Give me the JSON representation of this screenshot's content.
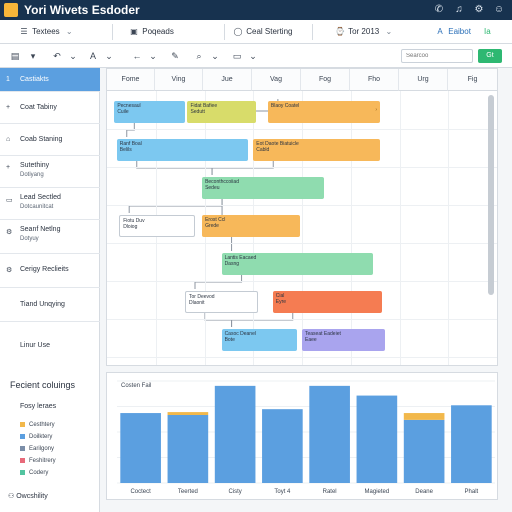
{
  "window": {
    "title": "Yori Wivets Esdoder"
  },
  "titlebar_icons": [
    "phone-icon",
    "bell-icon",
    "settings-icon",
    "user-icon"
  ],
  "tabs": [
    {
      "label": "Textees",
      "glyph": "☰",
      "chevron": true
    },
    {
      "label": "Poqeads",
      "glyph": "▣",
      "chevron": false
    },
    {
      "label": "Ceal Sterting",
      "glyph": "◯",
      "chevron": false
    },
    {
      "label": "Tor 2013",
      "glyph": "⌚",
      "chevron": true
    },
    {
      "label": "Eaibot",
      "glyph": "A",
      "chevron": false
    },
    {
      "label": "Ia",
      "glyph": "",
      "chevron": false
    }
  ],
  "toolbar": {
    "search_placeholder": "Searcoo",
    "go_label": "Gt"
  },
  "sidebar": {
    "items": [
      {
        "title": "Castiakts",
        "sub": "",
        "glyph": "1",
        "active": true
      },
      {
        "title": "Coat Tabiny",
        "sub": "",
        "glyph": "+",
        "active": false
      },
      {
        "title": "Coab Staning",
        "sub": "",
        "glyph": "⌂",
        "active": false
      },
      {
        "title": "Sutethiny",
        "sub": "Dotiyang",
        "glyph": "+",
        "active": false
      },
      {
        "title": "Lead Sectled",
        "sub": "Dotcaunitcat",
        "glyph": "▭",
        "active": false
      },
      {
        "title": "Seanf Netlng",
        "sub": "Dotyuy",
        "glyph": "⚙",
        "active": false
      },
      {
        "title": "Cerigy Reclieits",
        "sub": "",
        "glyph": "⚙",
        "active": false
      },
      {
        "title": "Tiand Unqying",
        "sub": "",
        "glyph": "",
        "active": false
      },
      {
        "title": "Linur Use",
        "sub": "",
        "glyph": "",
        "active": false
      }
    ],
    "legend_title": "Fecient coluings",
    "legend_sub": "Fosy leraes",
    "legend": [
      {
        "label": "Cesthtery",
        "color": "#f2b84b"
      },
      {
        "label": "Doilktery",
        "color": "#5b9fe0"
      },
      {
        "label": "Earilgony",
        "color": "#7b8ea8"
      },
      {
        "label": "Feshitrery",
        "color": "#e86a7a"
      },
      {
        "label": "Codery",
        "color": "#52c4a0"
      }
    ],
    "footer": "Owcshility"
  },
  "gantt": {
    "columns": [
      "Fome",
      "Ving",
      "Jue",
      "Vag",
      "Fog",
      "Fho",
      "Urg",
      "Fig"
    ],
    "bars": [
      {
        "title": "Pecnesaul",
        "sub": "Cuile",
        "color": "#7cc8f0",
        "col_start": 0.15,
        "col_span": 1.45,
        "row": 0
      },
      {
        "title": "Fidat Bafiee",
        "sub": "Sedutt",
        "color": "#d8dc6a",
        "col_start": 1.65,
        "col_span": 1.4,
        "row": 0
      },
      {
        "title": "Blaoy Coatel",
        "sub": "",
        "color": "#f7b85a",
        "col_start": 3.3,
        "col_span": 2.3,
        "row": 0,
        "arrow": true
      },
      {
        "title": "Ranf Boal",
        "sub": "Belils",
        "color": "#7cc8f0",
        "col_start": 0.2,
        "col_span": 2.7,
        "row": 1
      },
      {
        "title": "Eot Daote Biatuicle",
        "sub": "Cabld",
        "color": "#f7b85a",
        "col_start": 3.0,
        "col_span": 2.6,
        "row": 1
      },
      {
        "title": "Beconthccoiiad",
        "sub": "Sedeu",
        "color": "#8fdcaf",
        "col_start": 1.95,
        "col_span": 2.5,
        "row": 2
      },
      {
        "title": "Fiotu Duv",
        "sub": "Dloiog",
        "color": "#ffffff",
        "col_start": 0.25,
        "col_span": 1.55,
        "row": 3,
        "border": true
      },
      {
        "title": "Erost Ccl",
        "sub": "Grede",
        "color": "#f7b85a",
        "col_start": 1.95,
        "col_span": 2.0,
        "row": 3
      },
      {
        "title": "Lantis Eacaed",
        "sub": "Dasng",
        "color": "#8fdcaf",
        "col_start": 2.35,
        "col_span": 3.1,
        "row": 4
      },
      {
        "title": "Tor Deevod",
        "sub": "Dlaonit",
        "color": "#ffffff",
        "col_start": 1.6,
        "col_span": 1.5,
        "row": 5,
        "border": true
      },
      {
        "title": "Cial",
        "sub": "Eyre",
        "color": "#f57c52",
        "col_start": 3.4,
        "col_span": 2.25,
        "row": 5
      },
      {
        "title": "Casoc Deanel",
        "sub": "Bote",
        "color": "#7cc8f0",
        "col_start": 2.35,
        "col_span": 1.55,
        "row": 6
      },
      {
        "title": "Teaseat Eadeiet",
        "sub": "Eaee",
        "color": "#a9a4ee",
        "col_start": 4.0,
        "col_span": 1.7,
        "row": 6
      }
    ]
  },
  "chart_data": {
    "type": "bar",
    "title": "Costen Fail",
    "categories": [
      "Coctect",
      "Teerted",
      "Cisty",
      "Toyt 4",
      "Ratel",
      "Magieted",
      "Deane",
      "Phalt"
    ],
    "series": [
      {
        "name": "base",
        "values": [
          72,
          70,
          100,
          76,
          100,
          90,
          65,
          80
        ],
        "color": "#5b9fe0"
      },
      {
        "name": "top",
        "values": [
          0,
          3,
          0,
          0,
          0,
          0,
          7,
          0
        ],
        "color": "#f2b84b"
      }
    ],
    "ylim": [
      0,
      105
    ],
    "grid": true
  }
}
